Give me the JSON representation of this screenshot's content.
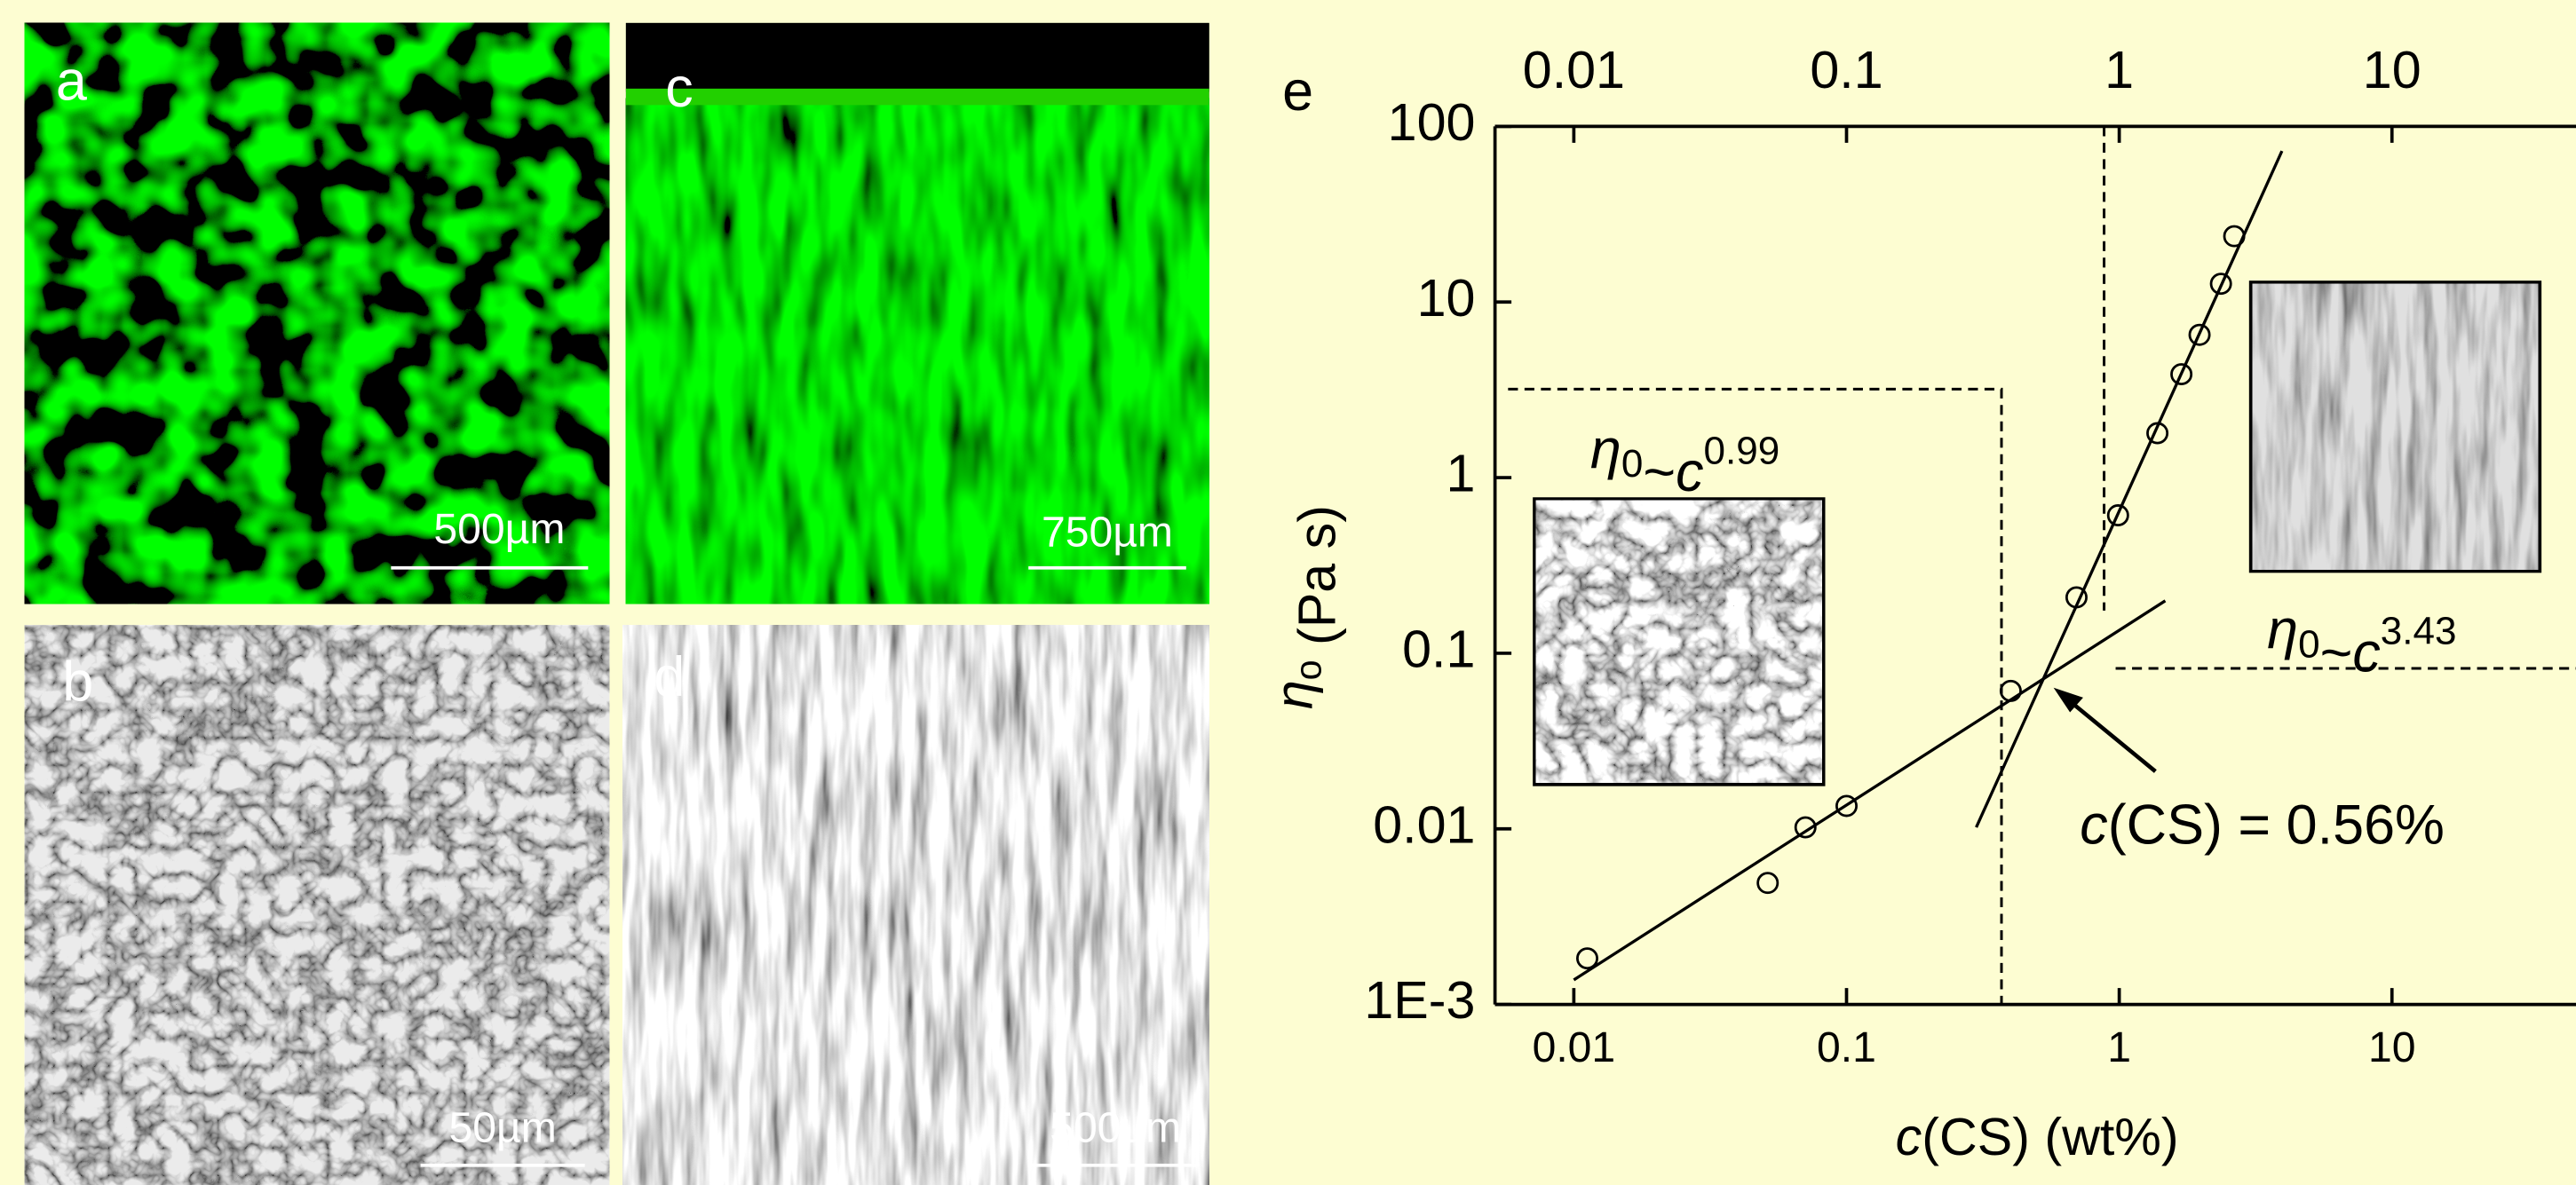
{
  "panels": [
    {
      "label": "a",
      "scale_bar": "500µm"
    },
    {
      "label": "b",
      "scale_bar": "50µm"
    },
    {
      "label": "c",
      "scale_bar": "750µm"
    },
    {
      "label": "d",
      "scale_bar": "500µm"
    }
  ],
  "chart_data": {
    "type": "scatter",
    "panel_label": "e",
    "x_label": {
      "var": "c",
      "rest": "(CS) (wt%)"
    },
    "y_label": {
      "symbol": "η",
      "sub": "o",
      "rest": " (Pa s)"
    },
    "x": [
      0.0112,
      0.0514,
      0.0707,
      0.1,
      0.4,
      0.697,
      0.99,
      1.38,
      1.69,
      1.97,
      2.36,
      2.64
    ],
    "values": [
      0.00183,
      0.00492,
      0.0102,
      0.0135,
      0.061,
      0.208,
      0.61,
      1.79,
      3.88,
      6.5,
      12.7,
      23.7
    ],
    "fit_lines": [
      {
        "x": [
          0.01,
          1.475
        ],
        "values": [
          0.00138,
          0.199
        ]
      },
      {
        "x": [
          0.299,
          3.95
        ],
        "values": [
          0.0102,
          72.4
        ]
      }
    ],
    "dashed_lines": [
      {
        "x": [
          0.00574,
          0.37,
          0.37
        ],
        "values": [
          3.19,
          3.19,
          0.001
        ]
      },
      {
        "x": [
          0.88,
          0.88
        ],
        "values": [
          100,
          0.175
        ]
      },
      {
        "x": [
          0.97,
          47.3
        ],
        "values": [
          0.082,
          0.082
        ]
      }
    ],
    "xlim": [
      0.00514,
      47.3
    ],
    "ylim": [
      0.001,
      100
    ],
    "log_x": true,
    "log_y": true,
    "xticks": [
      0.01,
      0.1,
      1,
      10
    ],
    "yticks": [
      {
        "value": 0.001,
        "label": "1E-3"
      },
      0.01,
      0.1,
      1,
      10,
      100
    ],
    "annotations": [
      {
        "symbol": "η",
        "sub": "0",
        "op": "~",
        "var": "c",
        "sup": "0.99"
      },
      {
        "symbol": "η",
        "sub": "0",
        "op": "~",
        "var": "c",
        "sup": "3.43"
      }
    ],
    "crossover": {
      "var": "c",
      "rest": "(CS) = 0.56%"
    }
  }
}
